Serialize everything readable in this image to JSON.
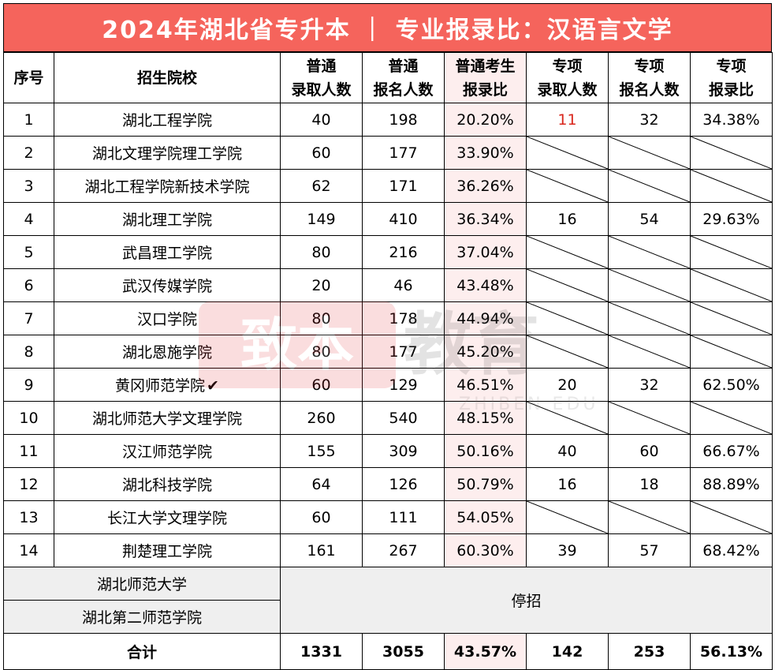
{
  "title": "2024年湖北省专升本 ｜ 专业报录比：汉语言文学",
  "colors": {
    "title_bg": "#f5645c",
    "ratio_col_bg": "#fdeeee",
    "highlight_red": "#d9261c"
  },
  "headers": {
    "seq": "序号",
    "school": "招生院校",
    "gen_admit": [
      "普通",
      "录取人数"
    ],
    "gen_apply": [
      "普通",
      "报名人数"
    ],
    "gen_ratio": [
      "普通考生",
      "报录比"
    ],
    "spec_admit": [
      "专项",
      "录取人数"
    ],
    "spec_apply": [
      "专项",
      "报名人数"
    ],
    "spec_ratio": [
      "专项",
      "报录比"
    ]
  },
  "rows": [
    {
      "no": "1",
      "school": "湖北工程学院",
      "ga": "40",
      "gp": "198",
      "gr": "20.20%",
      "sa": "11",
      "sp": "32",
      "sr": "34.38%"
    },
    {
      "no": "2",
      "school": "湖北文理学院理工学院",
      "ga": "60",
      "gp": "177",
      "gr": "33.90%"
    },
    {
      "no": "3",
      "school": "湖北工程学院新技术学院",
      "ga": "62",
      "gp": "171",
      "gr": "36.26%"
    },
    {
      "no": "4",
      "school": "湖北理工学院",
      "ga": "149",
      "gp": "410",
      "gr": "36.34%",
      "sa": "16",
      "sp": "54",
      "sr": "29.63%"
    },
    {
      "no": "5",
      "school": "武昌理工学院",
      "ga": "80",
      "gp": "216",
      "gr": "37.04%"
    },
    {
      "no": "6",
      "school": "武汉传媒学院",
      "ga": "20",
      "gp": "46",
      "gr": "43.48%"
    },
    {
      "no": "7",
      "school": "汉口学院",
      "ga": "80",
      "gp": "178",
      "gr": "44.94%"
    },
    {
      "no": "8",
      "school": "湖北恩施学院",
      "ga": "80",
      "gp": "177",
      "gr": "45.20%"
    },
    {
      "no": "9",
      "school": "黄冈师范学院",
      "check": "✔",
      "ga": "60",
      "gp": "129",
      "gr": "46.51%",
      "sa": "20",
      "sp": "32",
      "sr": "62.50%"
    },
    {
      "no": "10",
      "school": "湖北师范大学文理学院",
      "ga": "260",
      "gp": "540",
      "gr": "48.15%"
    },
    {
      "no": "11",
      "school": "汉江师范学院",
      "ga": "155",
      "gp": "309",
      "gr": "50.16%",
      "sa": "40",
      "sp": "60",
      "sr": "66.67%"
    },
    {
      "no": "12",
      "school": "湖北科技学院",
      "ga": "64",
      "gp": "126",
      "gr": "50.79%",
      "sa": "16",
      "sp": "18",
      "sr": "88.89%"
    },
    {
      "no": "13",
      "school": "长江大学文理学院",
      "ga": "60",
      "gp": "111",
      "gr": "54.05%"
    },
    {
      "no": "14",
      "school": "荆楚理工学院",
      "ga": "161",
      "gp": "267",
      "gr": "60.30%",
      "sa": "39",
      "sp": "57",
      "sr": "68.42%"
    }
  ],
  "stopped": {
    "schools": [
      "湖北师范大学",
      "湖北第二师范学院"
    ],
    "label": "停招"
  },
  "total": {
    "label": "合计",
    "ga": "1331",
    "gp": "3055",
    "gr": "43.57%",
    "sa": "142",
    "sp": "253",
    "sr": "56.13%"
  },
  "watermark": {
    "logo_text": "致本",
    "text": "教育",
    "sub": "ZHIBEN EDU"
  }
}
